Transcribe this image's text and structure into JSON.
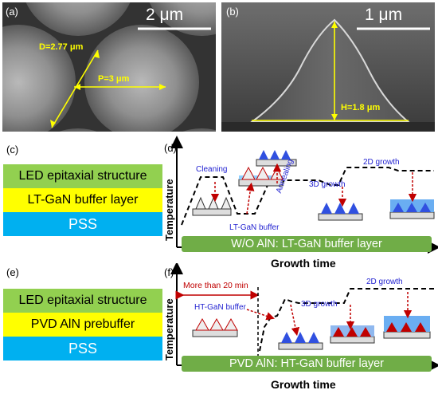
{
  "panels": {
    "a": {
      "label": "(a)",
      "scale_bar": "2 μm",
      "diameter_label": "D=2.77 μm",
      "period_label": "P=3 μm"
    },
    "b": {
      "label": "(b)",
      "scale_bar": "1 μm",
      "height_label": "H=1.8 μm"
    },
    "c": {
      "label": "(c)",
      "layers": [
        "LED epitaxial structure",
        "LT-GaN buffer layer",
        "PSS"
      ],
      "colors": [
        "#92d050",
        "#ffff00",
        "#00b0f0"
      ]
    },
    "d": {
      "label": "(d)",
      "ylabel": "Temperature",
      "xlabel": "Growth time",
      "bar_text": "W/O AlN: LT-GaN buffer layer",
      "notes": {
        "cleaning": "Cleaning",
        "buffer": "LT-GaN buffer",
        "annealing": "Annealing",
        "growth3d": "3D growth",
        "growth2d": "2D growth"
      }
    },
    "e": {
      "label": "(e)",
      "layers": [
        "LED epitaxial structure",
        "PVD AlN prebuffer",
        "PSS"
      ],
      "colors": [
        "#92d050",
        "#ffff00",
        "#00b0f0"
      ]
    },
    "f": {
      "label": "(f)",
      "ylabel": "Temperature",
      "xlabel": "Growth time",
      "bar_text": "PVD AlN: HT-GaN buffer layer",
      "notes": {
        "time": "More than 20 min",
        "buffer": "HT-GaN buffer",
        "growth3d": "3D growth",
        "growth2d": "2D growth"
      }
    }
  },
  "colors": {
    "accent_red": "#c00000",
    "accent_blue": "#1f1fd0",
    "bar_green": "#70ad47",
    "measure_yellow": "#ffff00"
  }
}
